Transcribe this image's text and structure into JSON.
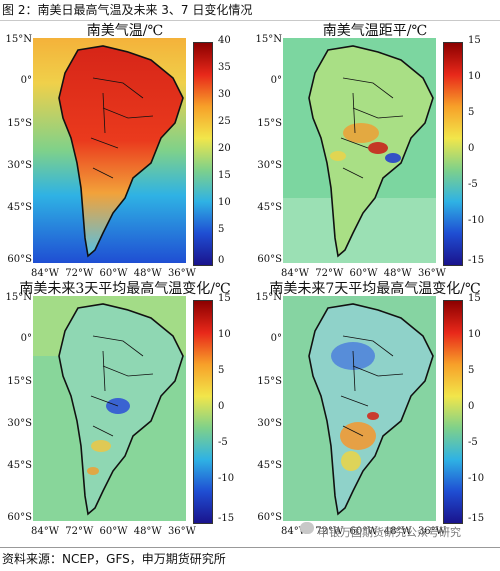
{
  "caption": "图 2：南美日最高气温及未来 3、7 日变化情况",
  "panels": [
    {
      "title": "南美气温/℃",
      "colorbar": [
        "40",
        "35",
        "30",
        "25",
        "20",
        "15",
        "10",
        "5",
        "0"
      ],
      "latitudes": [
        "15°N",
        "0°",
        "15°S",
        "30°S",
        "45°S",
        "60°S"
      ],
      "longitudes": [
        "84°W",
        "72°W",
        "60°W",
        "48°W",
        "36°W"
      ],
      "palette": "temp"
    },
    {
      "title": "南美气温距平/℃",
      "colorbar": [
        "15",
        "10",
        "5",
        "0",
        "-5",
        "-10",
        "-15"
      ],
      "latitudes": [
        "15°N",
        "0°",
        "15°S",
        "30°S",
        "45°S",
        "60°S"
      ],
      "longitudes": [
        "84°W",
        "72°W",
        "60°W",
        "48°W",
        "36°W"
      ],
      "palette": "anom"
    },
    {
      "title": "南美未来3天平均最高气温变化/℃",
      "colorbar": [
        "15",
        "10",
        "5",
        "0",
        "-5",
        "-10",
        "-15"
      ],
      "latitudes": [
        "15°N",
        "0°",
        "15°S",
        "30°S",
        "45°S",
        "60°S"
      ],
      "longitudes": [
        "84°W",
        "72°W",
        "60°W",
        "48°W",
        "36°W"
      ],
      "palette": "d3"
    },
    {
      "title": "南美未来7天平均最高气温变化/℃",
      "colorbar": [
        "15",
        "10",
        "5",
        "0",
        "-5",
        "-10",
        "-15"
      ],
      "latitudes": [
        "15°N",
        "0°",
        "15°S",
        "30°S",
        "45°S",
        "60°S"
      ],
      "longitudes": [
        "84°W",
        "72°W",
        "60°W",
        "48°W",
        "36°W"
      ],
      "palette": "d7"
    }
  ],
  "source": "资料来源：NCEP，GFS，申万期货研究所",
  "watermark": "申银万国期货研究公众号研究"
}
